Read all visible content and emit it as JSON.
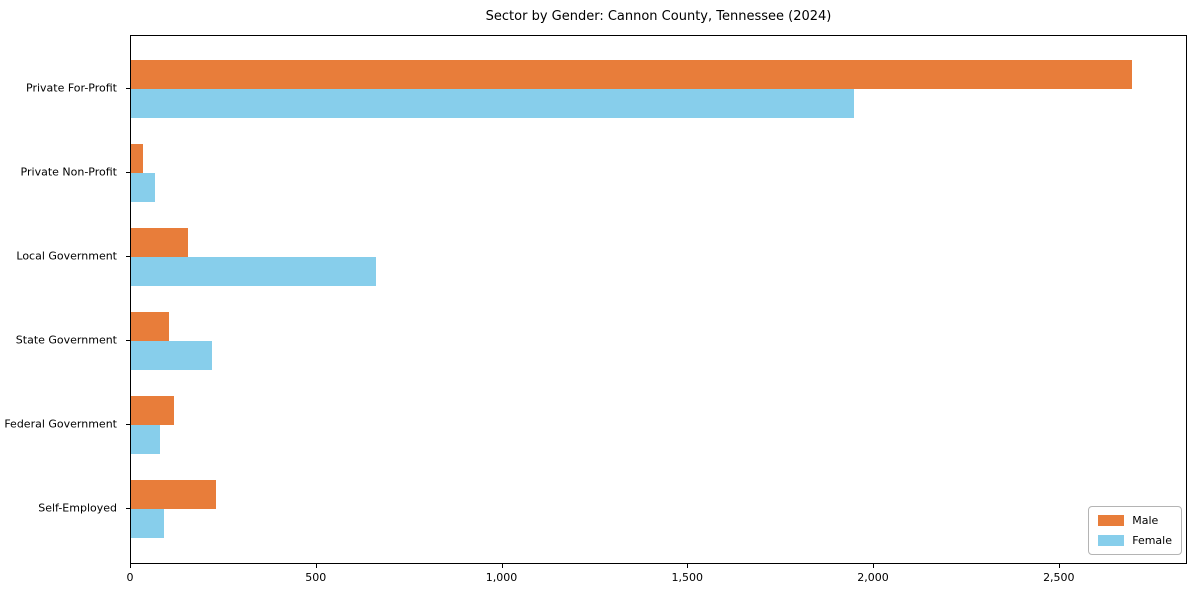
{
  "chart_data": {
    "type": "bar",
    "orientation": "horizontal",
    "title": "Sector by Gender: Cannon County, Tennessee (2024)",
    "categories": [
      "Private For-Profit",
      "Private Non-Profit",
      "Local Government",
      "State Government",
      "Federal Government",
      "Self-Employed"
    ],
    "series": [
      {
        "name": "Male",
        "color": "#E87D3A",
        "values": [
          2700,
          32,
          155,
          103,
          117,
          230
        ]
      },
      {
        "name": "Female",
        "color": "#87CEEB",
        "values": [
          1950,
          66,
          660,
          218,
          78,
          88
        ]
      }
    ],
    "xlabel": "",
    "ylabel": "",
    "xlim": [
      0,
      2845
    ],
    "x_ticks": [
      {
        "value": 0,
        "label": "0"
      },
      {
        "value": 500,
        "label": "500"
      },
      {
        "value": 1000,
        "label": "1,000"
      },
      {
        "value": 1500,
        "label": "1,500"
      },
      {
        "value": 2000,
        "label": "2,000"
      },
      {
        "value": 2500,
        "label": "2,500"
      }
    ],
    "grid": false,
    "legend_position": "lower right"
  }
}
